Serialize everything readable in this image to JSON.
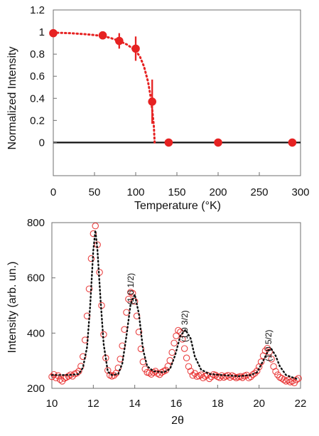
{
  "colors": {
    "point_red": "#e62222",
    "fit_red": "#e62222",
    "baseline_black": "#111111",
    "frame": "#6f6f6f",
    "fit_black": "#111111"
  },
  "chart_data": [
    {
      "type": "scatter",
      "xlabel": "Temperature (°K)",
      "ylabel": "Normalized Intensity",
      "xlim": [
        0,
        300
      ],
      "ylim": [
        -0.3,
        1.2
      ],
      "x_ticks": [
        "0",
        "50",
        "100",
        "150",
        "200",
        "250",
        "300"
      ],
      "y_ticks": [
        "0",
        "0.2",
        "0.4",
        "0.6",
        "0.8",
        "1",
        "1.2"
      ],
      "grid": false,
      "legend": "none",
      "series": [
        {
          "values": [
            {
              "x": 0,
              "y": 0.99,
              "err": 0.0
            },
            {
              "x": 60,
              "y": 0.97,
              "err": 0.0
            },
            {
              "x": 80,
              "y": 0.92,
              "err": 0.07
            },
            {
              "x": 100,
              "y": 0.85,
              "err": 0.11
            },
            {
              "x": 120,
              "y": 0.37,
              "err": 0.2
            },
            {
              "x": 140,
              "y": 0.0,
              "err": 0.0
            },
            {
              "x": 200,
              "y": 0.0,
              "err": 0.0
            },
            {
              "x": 290,
              "y": 0.0,
              "err": 0.0
            }
          ]
        }
      ],
      "fit_curve": {
        "style": "dotted",
        "points": [
          [
            0,
            0.995
          ],
          [
            20,
            0.99
          ],
          [
            40,
            0.98
          ],
          [
            60,
            0.965
          ],
          [
            70,
            0.945
          ],
          [
            80,
            0.92
          ],
          [
            90,
            0.885
          ],
          [
            100,
            0.83
          ],
          [
            105,
            0.78
          ],
          [
            110,
            0.69
          ],
          [
            115,
            0.55
          ],
          [
            118,
            0.42
          ],
          [
            120,
            0.3
          ],
          [
            122,
            0.15
          ],
          [
            123,
            0.0
          ]
        ]
      },
      "baseline": {
        "y": 0,
        "x_range": [
          0,
          300
        ]
      }
    },
    {
      "type": "scatter",
      "xlabel": "2θ",
      "ylabel": "Intensity (arb. un.)",
      "xlim": [
        10,
        22
      ],
      "ylim": [
        200,
        800
      ],
      "x_ticks": [
        "10",
        "12",
        "14",
        "16",
        "18",
        "20",
        "22"
      ],
      "y_ticks": [
        "200",
        "400",
        "600",
        "800"
      ],
      "grid": false,
      "legend": "none",
      "annotations": [
        {
          "text": "(1 0 1/2)",
          "x": 13.95,
          "y": 560
        },
        {
          "text": "(1 0 3/2)",
          "x": 16.55,
          "y": 425
        },
        {
          "text": "(1 0 5/2)",
          "x": 20.6,
          "y": 355
        }
      ],
      "series": [
        {
          "x": [
            10.0,
            10.1,
            10.2,
            10.3,
            10.4,
            10.5,
            10.6,
            10.7,
            10.8,
            10.9,
            11.0,
            11.1,
            11.2,
            11.3,
            11.4,
            11.5,
            11.6,
            11.7,
            11.8,
            11.9,
            12.0,
            12.1,
            12.2,
            12.3,
            12.4,
            12.5,
            12.6,
            12.7,
            12.8,
            12.9,
            13.0,
            13.1,
            13.2,
            13.3,
            13.4,
            13.5,
            13.6,
            13.7,
            13.8,
            13.9,
            14.0,
            14.1,
            14.2,
            14.3,
            14.4,
            14.5,
            14.6,
            14.7,
            14.8,
            14.9,
            15.0,
            15.1,
            15.2,
            15.3,
            15.4,
            15.5,
            15.6,
            15.7,
            15.8,
            15.9,
            16.0,
            16.1,
            16.2,
            16.3,
            16.4,
            16.5,
            16.6,
            16.7,
            16.8,
            16.9,
            17.0,
            17.1,
            17.2,
            17.3,
            17.4,
            17.5,
            17.6,
            17.7,
            17.8,
            17.9,
            18.0,
            18.1,
            18.2,
            18.3,
            18.4,
            18.5,
            18.6,
            18.7,
            18.8,
            18.9,
            19.0,
            19.1,
            19.2,
            19.3,
            19.4,
            19.5,
            19.6,
            19.7,
            19.8,
            19.9,
            20.0,
            20.1,
            20.2,
            20.3,
            20.4,
            20.5,
            20.6,
            20.7,
            20.8,
            20.9,
            21.0,
            21.1,
            21.2,
            21.3,
            21.4,
            21.5,
            21.6,
            21.7,
            21.8,
            21.9
          ],
          "y": [
            242,
            250,
            238,
            246,
            232,
            226,
            236,
            240,
            244,
            249,
            244,
            252,
            255,
            262,
            280,
            315,
            375,
            462,
            560,
            670,
            760,
            788,
            720,
            620,
            500,
            395,
            310,
            265,
            248,
            244,
            247,
            255,
            274,
            306,
            354,
            413,
            475,
            523,
            548,
            544,
            515,
            462,
            404,
            343,
            296,
            270,
            258,
            256,
            251,
            258,
            262,
            254,
            250,
            258,
            262,
            266,
            280,
            301,
            330,
            364,
            390,
            410,
            404,
            378,
            344,
            310,
            279,
            262,
            247,
            254,
            243,
            245,
            249,
            238,
            244,
            248,
            235,
            242,
            250,
            248,
            242,
            239,
            246,
            240,
            244,
            247,
            240,
            246,
            242,
            238,
            241,
            243,
            239,
            245,
            248,
            238,
            242,
            250,
            255,
            263,
            278,
            296,
            318,
            336,
            345,
            332,
            306,
            279,
            261,
            249,
            240,
            236,
            231,
            226,
            230,
            223,
            226,
            220,
            231,
            236
          ]
        }
      ],
      "fit_curve": {
        "style": "dotted",
        "points": [
          [
            10.0,
            248
          ],
          [
            10.5,
            248
          ],
          [
            11.0,
            249
          ],
          [
            11.3,
            252
          ],
          [
            11.5,
            275
          ],
          [
            11.7,
            350
          ],
          [
            11.85,
            500
          ],
          [
            12.0,
            700
          ],
          [
            12.1,
            772
          ],
          [
            12.2,
            700
          ],
          [
            12.35,
            520
          ],
          [
            12.5,
            360
          ],
          [
            12.7,
            260
          ],
          [
            12.9,
            248
          ],
          [
            13.2,
            252
          ],
          [
            13.4,
            290
          ],
          [
            13.6,
            390
          ],
          [
            13.8,
            505
          ],
          [
            14.0,
            540
          ],
          [
            14.2,
            470
          ],
          [
            14.4,
            340
          ],
          [
            14.6,
            280
          ],
          [
            14.9,
            262
          ],
          [
            15.4,
            258
          ],
          [
            15.7,
            270
          ],
          [
            15.95,
            320
          ],
          [
            16.2,
            390
          ],
          [
            16.45,
            412
          ],
          [
            16.7,
            380
          ],
          [
            16.9,
            315
          ],
          [
            17.2,
            268
          ],
          [
            17.6,
            252
          ],
          [
            18.2,
            248
          ],
          [
            19.0,
            244
          ],
          [
            19.6,
            248
          ],
          [
            19.9,
            258
          ],
          [
            20.2,
            300
          ],
          [
            20.45,
            338
          ],
          [
            20.6,
            342
          ],
          [
            20.8,
            318
          ],
          [
            21.0,
            280
          ],
          [
            21.3,
            248
          ],
          [
            21.9,
            232
          ]
        ]
      }
    }
  ]
}
